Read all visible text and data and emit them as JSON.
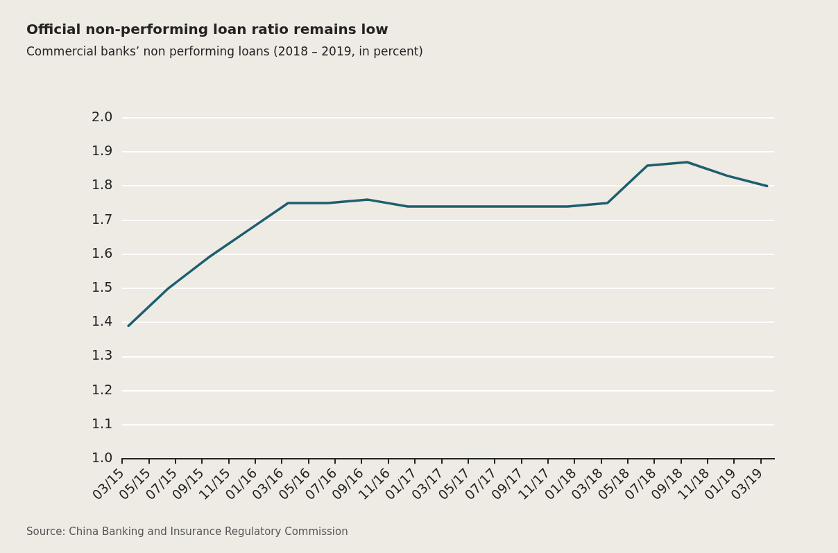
{
  "chart_data": {
    "type": "line",
    "title": "Official non-performing loan ratio remains low",
    "subtitle": "Commercial banks’ non performing loans (2018 – 2019, in percent)",
    "annotations": [
      "Source: China Banking and Insurance Regulatory Commission"
    ],
    "x": [
      "2015-03-15",
      "2015-06-15",
      "2015-09-15",
      "2015-12-15",
      "2016-03-15",
      "2016-06-15",
      "2016-09-15",
      "2016-12-15",
      "2017-03-15",
      "2017-06-15",
      "2017-09-15",
      "2017-12-15",
      "2018-03-15",
      "2018-06-15",
      "2018-09-15",
      "2018-12-15",
      "2019-03-15"
    ],
    "series": [
      {
        "color": "#1d5f6e",
        "values": [
          1.39,
          1.5,
          1.59,
          1.67,
          1.75,
          1.75,
          1.76,
          1.74,
          1.74,
          1.74,
          1.74,
          1.74,
          1.75,
          1.86,
          1.87,
          1.83,
          1.8
        ]
      }
    ],
    "xlim": [
      "2015-03",
      "2019-04"
    ],
    "xticks": [
      {
        "value": "2015-03",
        "label": "03/15"
      },
      {
        "value": "2015-05",
        "label": "05/15"
      },
      {
        "value": "2015-07",
        "label": "07/15"
      },
      {
        "value": "2015-09",
        "label": "09/15"
      },
      {
        "value": "2015-11",
        "label": "11/15"
      },
      {
        "value": "2016-01",
        "label": "01/16"
      },
      {
        "value": "2016-03",
        "label": "03/16"
      },
      {
        "value": "2016-05",
        "label": "05/16"
      },
      {
        "value": "2016-07",
        "label": "07/16"
      },
      {
        "value": "2016-09",
        "label": "09/16"
      },
      {
        "value": "2016-11",
        "label": "11/16"
      },
      {
        "value": "2017-01",
        "label": "01/17"
      },
      {
        "value": "2017-03",
        "label": "03/17"
      },
      {
        "value": "2017-05",
        "label": "05/17"
      },
      {
        "value": "2017-07",
        "label": "07/17"
      },
      {
        "value": "2017-09",
        "label": "09/17"
      },
      {
        "value": "2017-11",
        "label": "11/17"
      },
      {
        "value": "2018-01",
        "label": "01/18"
      },
      {
        "value": "2018-03",
        "label": "03/18"
      },
      {
        "value": "2018-05",
        "label": "05/18"
      },
      {
        "value": "2018-07",
        "label": "07/18"
      },
      {
        "value": "2018-09",
        "label": "09/18"
      },
      {
        "value": "2018-11",
        "label": "11/18"
      },
      {
        "value": "2019-01",
        "label": "01/19"
      },
      {
        "value": "2019-03",
        "label": "03/19"
      }
    ],
    "ylim": [
      1.0,
      2.0
    ],
    "yticks": [
      {
        "value": 1.0,
        "label": "1.0"
      },
      {
        "value": 1.1,
        "label": "1.1"
      },
      {
        "value": 1.2,
        "label": "1.2"
      },
      {
        "value": 1.3,
        "label": "1.3"
      },
      {
        "value": 1.4,
        "label": "1.4"
      },
      {
        "value": 1.5,
        "label": "1.5"
      },
      {
        "value": 1.6,
        "label": "1.6"
      },
      {
        "value": 1.7,
        "label": "1.7"
      },
      {
        "value": 1.8,
        "label": "1.8"
      },
      {
        "value": 1.9,
        "label": "1.9"
      },
      {
        "value": 2.0,
        "label": "2.0"
      }
    ],
    "grid": "y",
    "legend": false,
    "marker": "none",
    "line_style": "solid"
  }
}
